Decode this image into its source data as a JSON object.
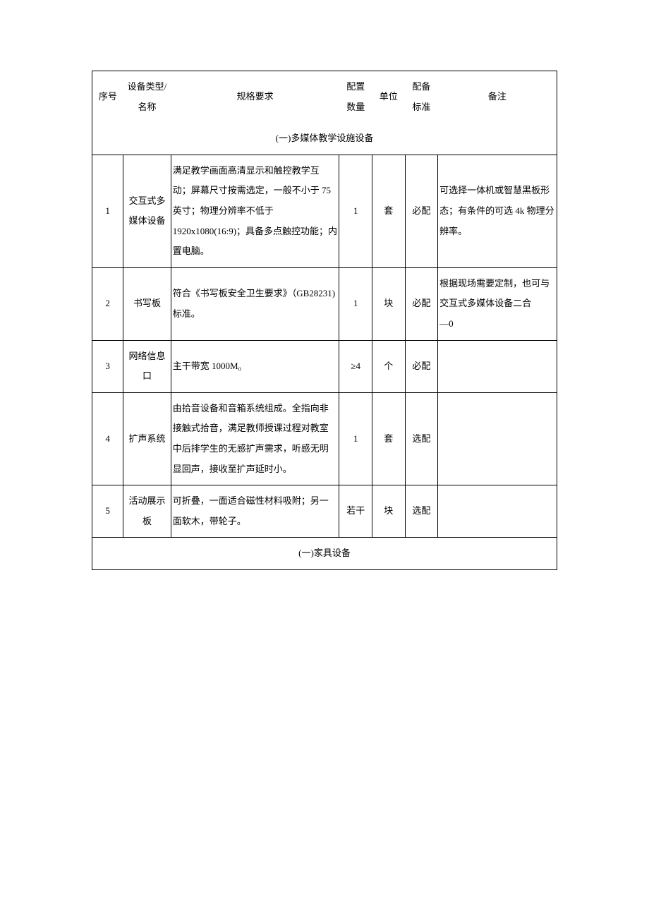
{
  "headers": {
    "seq": "序号",
    "name": "设备类型/名称",
    "spec": "规格要求",
    "qty": "配置数量",
    "unit": "单位",
    "std": "配备标准",
    "remark": "备注"
  },
  "section1_title": "(一)多媒体教学设施设备",
  "section2_title": "(一)家具设备",
  "rows": [
    {
      "seq": "1",
      "name": "交互式多媒体设备",
      "spec": "满足教学画面高清显示和触控教学互动；屏幕尺寸按需选定，一般不小于 75 英寸；物理分辨率不低于 1920x1080(16:9)；具备多点触控功能；内置电脑。",
      "qty": "1",
      "unit": "套",
      "std": "必配",
      "remark": "可选择一体机或智慧黑板形态；有条件的可选 4k 物理分辨率。"
    },
    {
      "seq": "2",
      "name": "书写板",
      "spec": "符合《书写板安全卫生要求》（GB28231)标准。",
      "qty": "1",
      "unit": "块",
      "std": "必配",
      "remark": "根据现场需要定制，也可与交互式多媒体设备二合\n—0"
    },
    {
      "seq": "3",
      "name": "网络信息口",
      "spec": "主干带宽 1000M₀",
      "qty": "≥4",
      "unit": "个",
      "std": "必配",
      "remark": ""
    },
    {
      "seq": "4",
      "name": "扩声系统",
      "spec": "由拾音设备和音箱系统组成。全指向非接触式拾音，满足教师授课过程对教室中后排学生的无感扩声需求，听感无明显回声，接收至扩声延时小。",
      "qty": "1",
      "unit": "套",
      "std": "选配",
      "remark": ""
    },
    {
      "seq": "5",
      "name": "活动展示板",
      "spec": "可折叠，一面适合磁性材料吸附；另一面软木，带轮子。",
      "qty": "若干",
      "unit": "块",
      "std": "选配",
      "remark": ""
    }
  ]
}
